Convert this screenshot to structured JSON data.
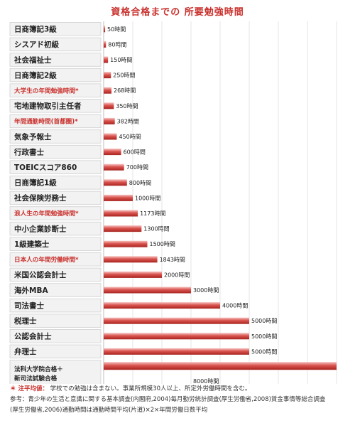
{
  "chart_data": {
    "type": "bar",
    "orientation": "horizontal",
    "title": "資格合格までの 所要勉強時間",
    "xlabel": "",
    "ylabel": "",
    "xlim": [
      0,
      8000
    ],
    "grid": true,
    "value_suffix": "時間",
    "categories": [
      {
        "label": "日商簿記3級",
        "value": 50,
        "highlight": false
      },
      {
        "label": "シスアド初級",
        "value": 80,
        "highlight": false
      },
      {
        "label": "社会福祉士",
        "value": 150,
        "highlight": false
      },
      {
        "label": "日商簿記2級",
        "value": 250,
        "highlight": false
      },
      {
        "label": "大学生の年間勉強時間*",
        "value": 268,
        "highlight": true
      },
      {
        "label": "宅地建物取引主任者",
        "value": 350,
        "highlight": false
      },
      {
        "label": "年間通勤時間(首都圏)*",
        "value": 382,
        "highlight": true
      },
      {
        "label": "気象予報士",
        "value": 450,
        "highlight": false
      },
      {
        "label": "行政書士",
        "value": 600,
        "highlight": false
      },
      {
        "label": "TOEICスコア860",
        "value": 700,
        "highlight": false
      },
      {
        "label": "日商簿記1級",
        "value": 800,
        "highlight": false
      },
      {
        "label": "社会保険労務士",
        "value": 1000,
        "highlight": false
      },
      {
        "label": "浪人生の年間勉強時間*",
        "value": 1173,
        "highlight": true
      },
      {
        "label": "中小企業診断士",
        "value": 1300,
        "highlight": false
      },
      {
        "label": "1級建築士",
        "value": 1500,
        "highlight": false
      },
      {
        "label": "日本人の年間労働時間*",
        "value": 1843,
        "highlight": true
      },
      {
        "label": "米国公認会計士",
        "value": 2000,
        "highlight": false
      },
      {
        "label": "海外MBA",
        "value": 3000,
        "highlight": false
      },
      {
        "label": "司法書士",
        "value": 4000,
        "highlight": false
      },
      {
        "label": "税理士",
        "value": 5000,
        "highlight": false
      },
      {
        "label": "公認会計士",
        "value": 5000,
        "highlight": false
      },
      {
        "label": "弁理士",
        "value": 5000,
        "highlight": false
      },
      {
        "label": "法科大学院合格＋\n新司法試験合格",
        "value": 8000,
        "highlight": false
      }
    ],
    "colors": {
      "bar": "#d9534f",
      "bar_dark": "#b52b27",
      "bar_light": "#f4b4b2",
      "highlight_text": "#c9302c",
      "label_bg": "#f2f2f2",
      "border": "#cfcfcf"
    }
  },
  "footnotes": {
    "mark": "＊ 注平均値：",
    "line1": "学校での勉強は含まない。事業所規模30人以上、所定外労働時間を含む。",
    "line2": "参考：青少年の生活と意識に関する基本調査(内閣府,2004)毎月勤労統計調査(厚生労働省,2008)賃金事情等総合調査",
    "line3": "(厚生労働省,2006)通勤時間は通勤時間平均(片道)×2×年間労働日数平均"
  }
}
